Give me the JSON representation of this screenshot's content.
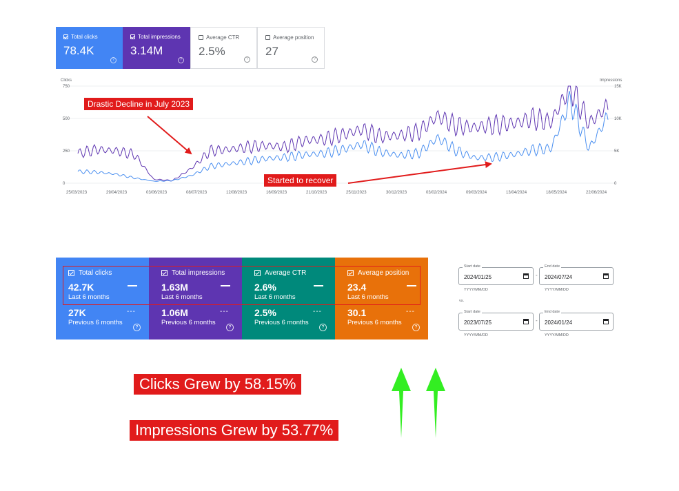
{
  "top_metrics": [
    {
      "label": "Total clicks",
      "value": "78.4K",
      "checked": true,
      "bg": "#4285f4",
      "fg": "#ffffff"
    },
    {
      "label": "Total impressions",
      "value": "3.14M",
      "checked": true,
      "bg": "#5e35b1",
      "fg": "#ffffff"
    },
    {
      "label": "Average CTR",
      "value": "2.5%",
      "checked": false,
      "bg": "#ffffff",
      "fg": "#5f6368"
    },
    {
      "label": "Average position",
      "value": "27",
      "checked": false,
      "bg": "#ffffff",
      "fg": "#5f6368"
    }
  ],
  "chart_data": {
    "type": "line",
    "y_left_label": "Clicks",
    "y_right_label": "Impressions",
    "y_left_ticks": [
      "750",
      "500",
      "250",
      "0"
    ],
    "y_right_ticks": [
      "15K",
      "10K",
      "5K",
      "0"
    ],
    "ylim_left": [
      0,
      750
    ],
    "ylim_right": [
      0,
      15000
    ],
    "x_ticks": [
      "25/03/2023",
      "29/04/2023",
      "03/06/2023",
      "08/07/2023",
      "12/08/2023",
      "16/09/2023",
      "21/10/2023",
      "25/11/2023",
      "30/12/2023",
      "03/02/2024",
      "09/03/2024",
      "13/04/2024",
      "18/05/2024",
      "22/06/2024"
    ],
    "grid": true,
    "series": [
      {
        "name": "Total clicks",
        "color": "#4a8ff0",
        "values": [
          90,
          85,
          70,
          40,
          15,
          20,
          60,
          130,
          150,
          170,
          190,
          200,
          220,
          230,
          260,
          300,
          240,
          215,
          230,
          350,
          250,
          195,
          200,
          220,
          255,
          270,
          640,
          265,
          520
        ]
      },
      {
        "name": "Total impressions",
        "color": "#5e35b1",
        "values": [
          4600,
          5200,
          5000,
          4400,
          600,
          400,
          2300,
          5000,
          5200,
          5600,
          5800,
          5600,
          6600,
          6800,
          7500,
          8300,
          7200,
          7400,
          7900,
          10400,
          8800,
          8600,
          9000,
          9200,
          10000,
          9500,
          15000,
          9200,
          12000
        ]
      }
    ]
  },
  "annotations": {
    "decline": "Drastic Decline in July 2023",
    "recover": "Started to recover"
  },
  "compare_cards": [
    {
      "label": "Total clicks",
      "current": "42.7K",
      "current_period": "Last 6 months",
      "previous": "27K",
      "previous_period": "Previous 6 months",
      "bg": "#4285f4"
    },
    {
      "label": "Total impressions",
      "current": "1.63M",
      "current_period": "Last 6 months",
      "previous": "1.06M",
      "previous_period": "Previous 6 months",
      "bg": "#5e35b1"
    },
    {
      "label": "Average CTR",
      "current": "2.6%",
      "current_period": "Last 6 months",
      "previous": "2.5%",
      "previous_period": "Previous 6 months",
      "bg": "#00897b"
    },
    {
      "label": "Average position",
      "current": "23.4",
      "current_period": "Last 6 months",
      "previous": "30.1",
      "previous_period": "Previous 6 months",
      "bg": "#e8710a"
    }
  ],
  "date_range": {
    "start_caption": "Start date",
    "end_caption": "End date",
    "format_hint": "YYYY/MM/DD",
    "range1_start": "2024/01/25",
    "range1_end": "2024/07/24",
    "vs_label": "vs.",
    "range2_start": "2023/07/25",
    "range2_end": "2024/01/24",
    "separator": "-"
  },
  "growth": {
    "clicks": "Clicks Grew by 58.15%",
    "impressions": "Impressions Grew by 53.77%"
  },
  "colors": {
    "callout_red": "#e11b1b",
    "arrow_green": "#33ee22",
    "highlight_border": "#e11b1b"
  }
}
